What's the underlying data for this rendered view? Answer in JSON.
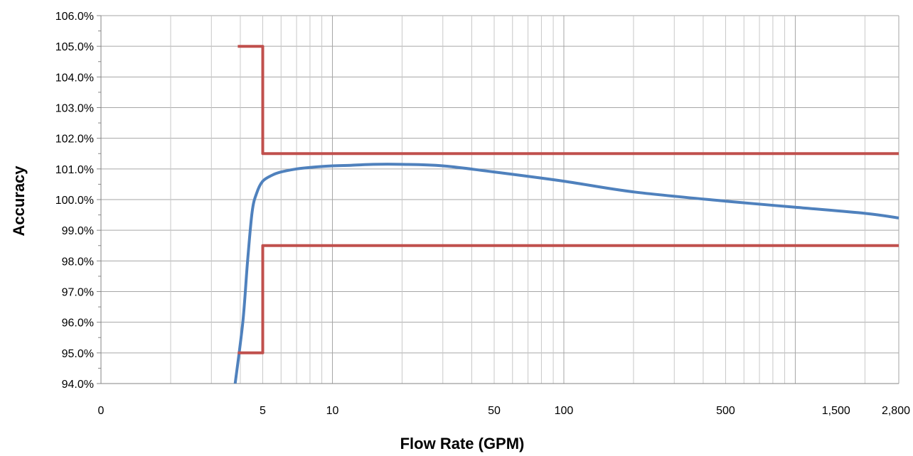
{
  "chart_data": {
    "type": "line",
    "title": "",
    "xlabel": "Flow Rate (GPM)",
    "ylabel": "Accuracy",
    "x_scale": "log",
    "xlim": [
      1,
      2800
    ],
    "ylim": [
      94.0,
      106.0
    ],
    "y_ticks": [
      "94.0%",
      "95.0%",
      "96.0%",
      "97.0%",
      "98.0%",
      "99.0%",
      "100.0%",
      "101.0%",
      "102.0%",
      "103.0%",
      "104.0%",
      "105.0%",
      "106.0%"
    ],
    "y_tick_values": [
      94,
      95,
      96,
      97,
      98,
      99,
      100,
      101,
      102,
      103,
      104,
      105,
      106
    ],
    "x_ticks": [
      "0",
      "5",
      "10",
      "50",
      "100",
      "500",
      "1,500",
      "2,800"
    ],
    "x_tick_values": [
      1,
      5,
      10,
      50,
      100,
      500,
      1500,
      2800
    ],
    "grid": true,
    "legend": "none",
    "series": [
      {
        "color": "#4f81bd",
        "x": [
          3.8,
          4.1,
          4.3,
          4.5,
          4.7,
          5.0,
          5.5,
          6.0,
          7.0,
          8.0,
          10.0,
          12.0,
          15.0,
          20.0,
          30.0,
          50.0,
          100.0,
          200.0,
          500.0,
          1000.0,
          2000.0,
          2800.0
        ],
        "y": [
          94.0,
          96.0,
          98.0,
          99.6,
          100.2,
          100.6,
          100.8,
          100.9,
          101.0,
          101.05,
          101.1,
          101.12,
          101.15,
          101.15,
          101.1,
          100.9,
          100.6,
          100.25,
          99.95,
          99.75,
          99.55,
          99.4
        ]
      },
      {
        "color": "#c0504d",
        "x": [
          3.9,
          5.0,
          5.0,
          2800
        ],
        "y": [
          105.0,
          105.0,
          101.5,
          101.5
        ]
      },
      {
        "color": "#c0504d",
        "x": [
          3.9,
          5.0,
          5.0,
          2800
        ],
        "y": [
          95.0,
          95.0,
          98.5,
          98.5
        ]
      }
    ]
  }
}
